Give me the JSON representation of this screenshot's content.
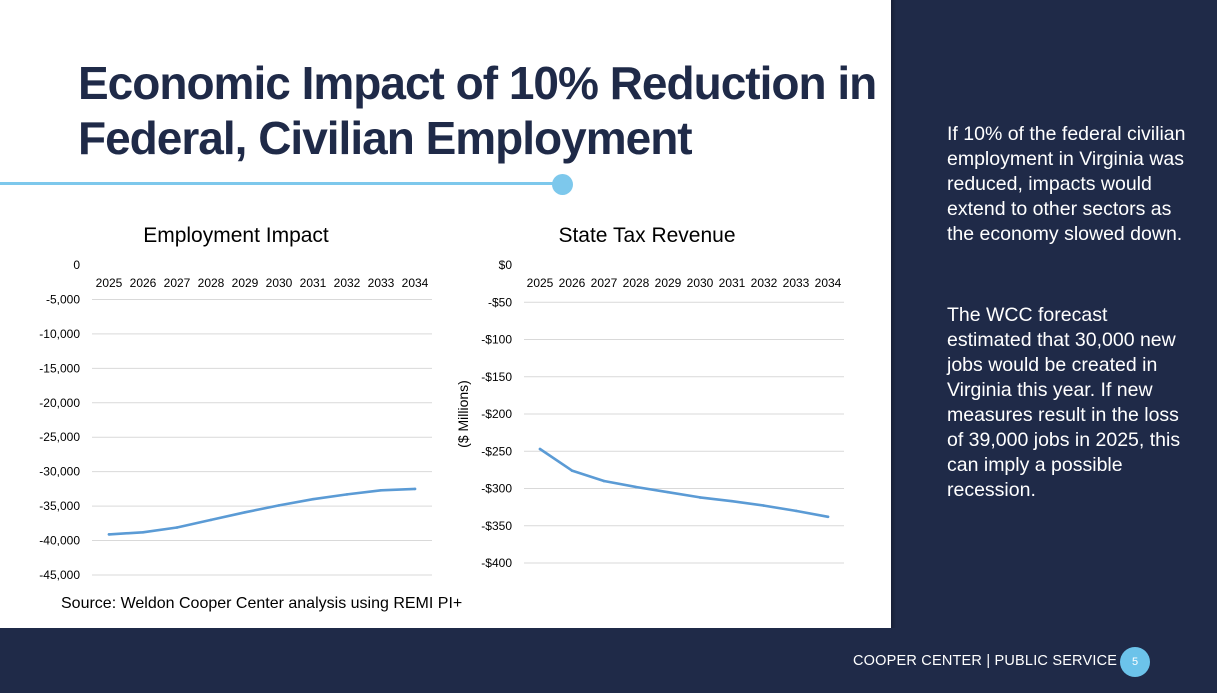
{
  "slide": {
    "title": "Economic Impact of 10% Reduction in Federal, Civilian Employment",
    "source": "Source: Weldon Cooper Center analysis using REMI PI+",
    "colors": {
      "navy": "#1f2a48",
      "accent": "#7dc8ec",
      "series": "#5b9bd5"
    }
  },
  "panel": {
    "paragraphs": [
      "If 10% of the federal civilian employment in Virginia was reduced, impacts would extend to other sectors as the economy slowed down.",
      "The WCC forecast estimated that 30,000 new jobs would be created in Virginia this year. If new measures result in the loss of 39,000 jobs in 2025, this can imply a possible recession."
    ]
  },
  "footer": {
    "label": "COOPER CENTER | PUBLIC SERVICE",
    "page_number": "5"
  },
  "chart_data": [
    {
      "type": "line",
      "title": "Employment Impact",
      "xlabel": "",
      "ylabel": "",
      "categories": [
        "2025",
        "2026",
        "2027",
        "2028",
        "2029",
        "2030",
        "2031",
        "2032",
        "2033",
        "2034"
      ],
      "ylim": [
        -45000,
        0
      ],
      "yticks": [
        0,
        -5000,
        -10000,
        -15000,
        -20000,
        -25000,
        -30000,
        -35000,
        -40000,
        -45000
      ],
      "ytick_labels": [
        "0",
        "-5,000",
        "-10,000",
        "-15,000",
        "-20,000",
        "-25,000",
        "-30,000",
        "-35,000",
        "-40,000",
        "-45,000"
      ],
      "grid": true,
      "x_axis_position": "top",
      "series": [
        {
          "values": [
            -39100,
            -38800,
            -38100,
            -37000,
            -35900,
            -34900,
            -34000,
            -33300,
            -32700,
            -32500
          ]
        }
      ]
    },
    {
      "type": "line",
      "title": "State Tax Revenue",
      "xlabel": "",
      "ylabel": "($ Millions)",
      "categories": [
        "2025",
        "2026",
        "2027",
        "2028",
        "2029",
        "2030",
        "2031",
        "2032",
        "2033",
        "2034"
      ],
      "ylim": [
        -400,
        0
      ],
      "yticks": [
        0,
        -50,
        -100,
        -150,
        -200,
        -250,
        -300,
        -350,
        -400
      ],
      "ytick_labels": [
        "$0",
        "-$50",
        "-$100",
        "-$150",
        "-$200",
        "-$250",
        "-$300",
        "-$350",
        "-$400"
      ],
      "grid": true,
      "x_axis_position": "top",
      "series": [
        {
          "values": [
            -247,
            -276,
            -290,
            -298,
            -305,
            -312,
            -317,
            -323,
            -330,
            -338
          ]
        }
      ]
    }
  ]
}
